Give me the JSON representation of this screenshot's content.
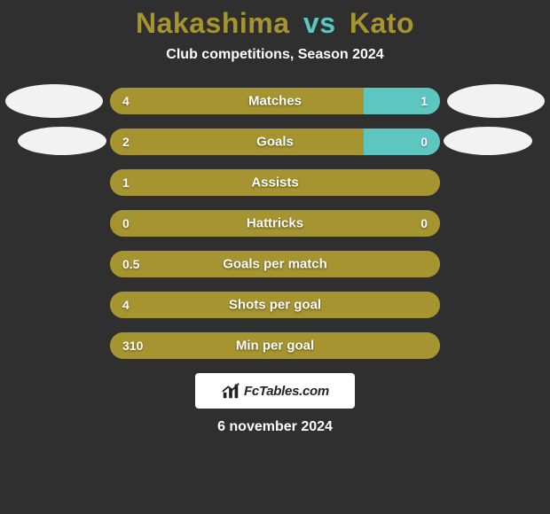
{
  "background_color": "#2f2f2f",
  "title": {
    "player1_name": "Nakashima",
    "vs_text": "vs",
    "player2_name": "Kato",
    "player1_color": "#a59430",
    "vs_color": "#5dc6c0",
    "player2_color": "#a59430"
  },
  "subtitle": {
    "text": "Club competitions, Season 2024",
    "color": "#ffffff"
  },
  "avatars": {
    "left_bg": "#f2f2f2",
    "right_bg": "#f2f2f2"
  },
  "comparison": {
    "bar_bg": "#6b601f",
    "left_fill_color": "#a59430",
    "right_fill_color": "#5dc6c0",
    "value_text_color": "#ffffff",
    "label_text_color": "#ffffff",
    "stats": [
      {
        "label": "Matches",
        "left_value": "4",
        "right_value": "1",
        "left_pct": 77,
        "right_pct": 23,
        "show_right": true
      },
      {
        "label": "Goals",
        "left_value": "2",
        "right_value": "0",
        "left_pct": 77,
        "right_pct": 23,
        "show_right": true
      },
      {
        "label": "Assists",
        "left_value": "1",
        "right_value": "",
        "left_pct": 100,
        "right_pct": 0,
        "show_right": false
      },
      {
        "label": "Hattricks",
        "left_value": "0",
        "right_value": "0",
        "left_pct": 100,
        "right_pct": 0,
        "show_right": true
      },
      {
        "label": "Goals per match",
        "left_value": "0.5",
        "right_value": "",
        "left_pct": 100,
        "right_pct": 0,
        "show_right": false
      },
      {
        "label": "Shots per goal",
        "left_value": "4",
        "right_value": "",
        "left_pct": 100,
        "right_pct": 0,
        "show_right": false
      },
      {
        "label": "Min per goal",
        "left_value": "310",
        "right_value": "",
        "left_pct": 100,
        "right_pct": 0,
        "show_right": false
      }
    ]
  },
  "logo": {
    "box_bg": "#ffffff",
    "icon_color": "#222222",
    "text": "FcTables.com",
    "text_color": "#222222"
  },
  "date": {
    "text": "6 november 2024",
    "color": "#ffffff"
  }
}
